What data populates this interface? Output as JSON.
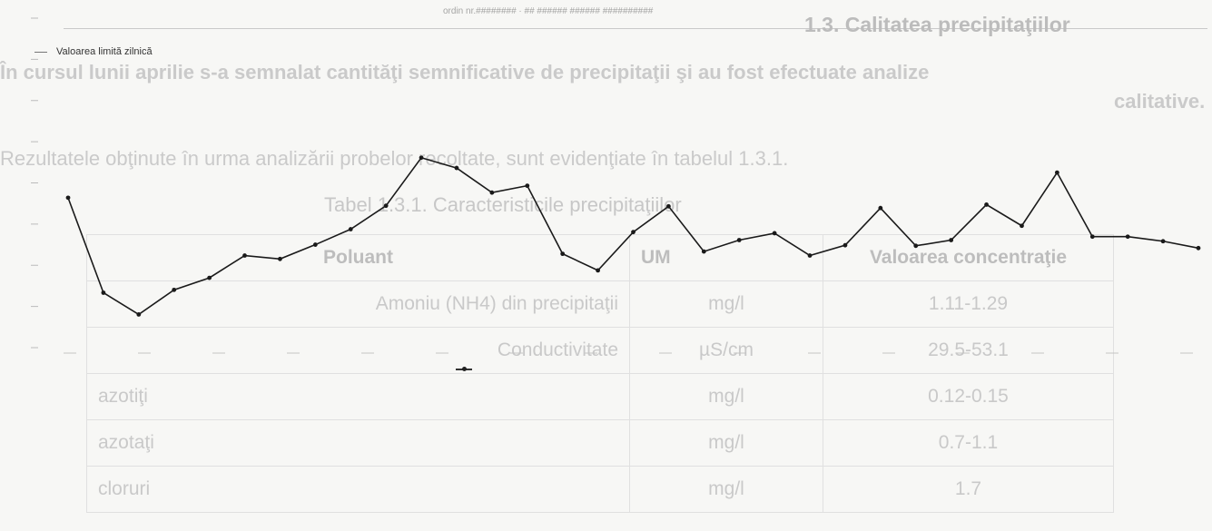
{
  "caption_top": "ordin nr.######## · ##  ######  ######  ##########",
  "document": {
    "heading": "1.3. Calitatea precipitaţiilor",
    "paragraph_line1": "În cursul lunii aprilie s-a semnalat cantităţi semnificative de precipitaţii şi au fost efectuate analize",
    "paragraph_line2": "calitative.",
    "paragraph2": "Rezultatele obţinute în urma analizării probelor recoltate, sunt evidenţiate în tabelul 1.3.1.",
    "table_caption": "Tabel 1.3.1. Caracteristicile precipitaţiilor",
    "table": {
      "headers": [
        "Poluant",
        "UM",
        "Valoarea concentraţie"
      ],
      "rows": [
        [
          "Amoniu (NH4) din precipitaţii",
          "mg/l",
          "1.11-1.29"
        ],
        [
          "Conductivitate",
          "µS/cm",
          "29.5-53.1"
        ],
        [
          "azotiţi",
          "mg/l",
          "0.12-0.15"
        ],
        [
          "azotaţi",
          "mg/l",
          "0.7-1.1"
        ],
        [
          "cloruri",
          "mg/l",
          "1.7"
        ]
      ]
    }
  },
  "chart_data": {
    "type": "line",
    "title": "Valoarea limită zilnică",
    "legend": "",
    "series": [
      {
        "name": "",
        "color": "#1a1a1a",
        "values": [
          262,
          96,
          58,
          101,
          122,
          161,
          155,
          180,
          207,
          248,
          332,
          314,
          271,
          283,
          164,
          135,
          202,
          247,
          168,
          188,
          200,
          161,
          179,
          244,
          178,
          188,
          250,
          213,
          306,
          194,
          194,
          186,
          174
        ]
      }
    ],
    "x_count": 33,
    "ylim": [
      0,
      330
    ],
    "grid": false
  }
}
